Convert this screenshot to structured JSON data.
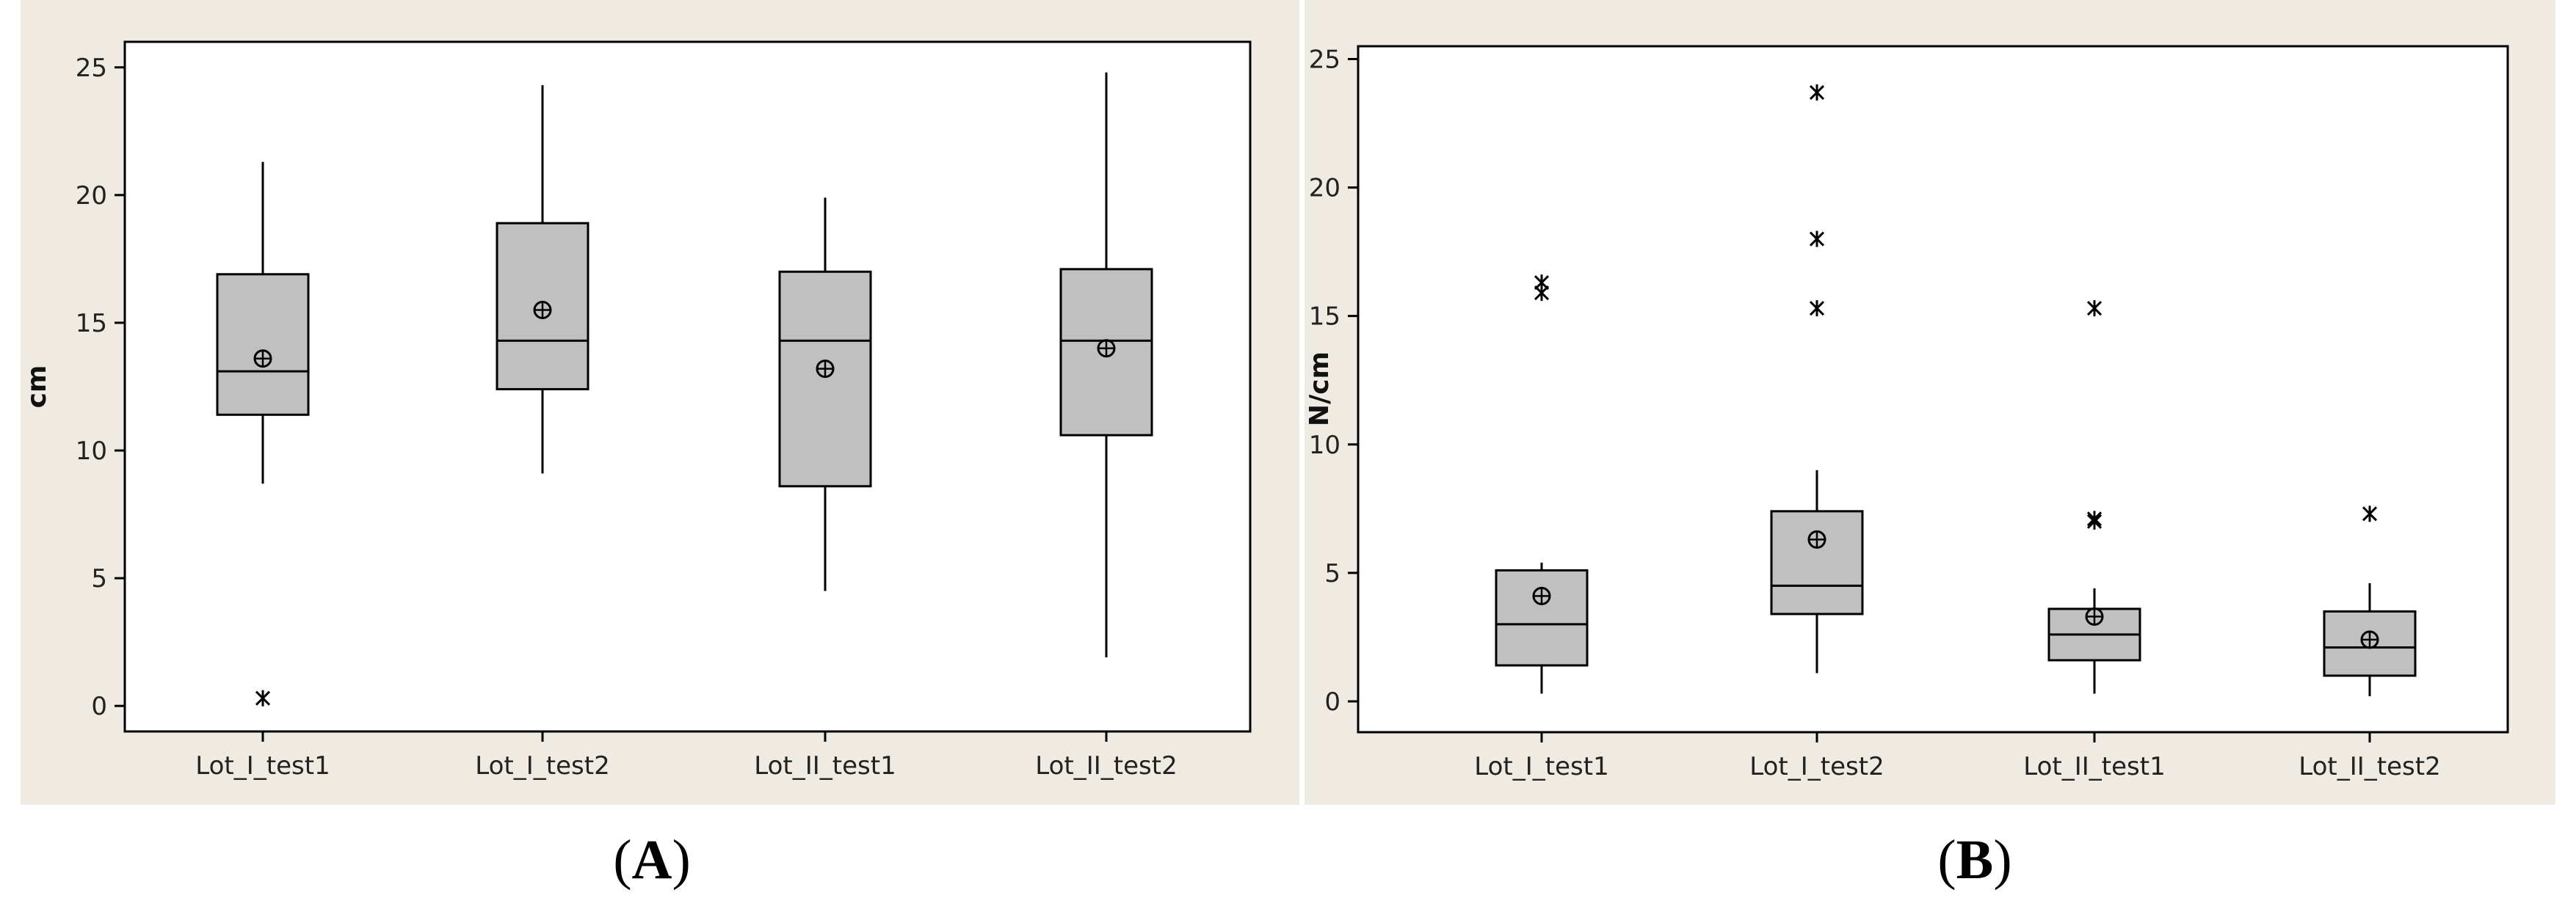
{
  "colors": {
    "panel_background": "#efebe2",
    "plot_background": "#ffffff",
    "box_fill": "#c0c0c0",
    "line": "#000000"
  },
  "chart_data": [
    {
      "type": "boxplot",
      "panel_label": {
        "open": "(",
        "letter": "A",
        "close": ")"
      },
      "ylabel": "cm",
      "ylim": [
        -1,
        26
      ],
      "yticks": [
        "0",
        "5",
        "10",
        "15",
        "20",
        "25"
      ],
      "categories": [
        "Lot_I_test1",
        "Lot_I_test2",
        "Lot_II_test1",
        "Lot_II_test2"
      ],
      "boxes": [
        {
          "whisker_low": 8.7,
          "q1": 11.4,
          "median": 13.1,
          "q3": 16.9,
          "whisker_high": 21.3,
          "mean": 13.6,
          "outliers": [
            0.3
          ]
        },
        {
          "whisker_low": 9.1,
          "q1": 12.4,
          "median": 14.3,
          "q3": 18.9,
          "whisker_high": 24.3,
          "mean": 15.5,
          "outliers": []
        },
        {
          "whisker_low": 4.5,
          "q1": 8.6,
          "median": 14.3,
          "q3": 17.0,
          "whisker_high": 19.9,
          "mean": 13.2,
          "outliers": []
        },
        {
          "whisker_low": 1.9,
          "q1": 10.6,
          "median": 14.3,
          "q3": 17.1,
          "whisker_high": 24.8,
          "mean": 14.0,
          "outliers": []
        }
      ],
      "grid": false,
      "legend": "none"
    },
    {
      "type": "boxplot",
      "panel_label": {
        "open": "(",
        "letter": "B",
        "close": ")"
      },
      "ylabel": "N/cm",
      "ylim": [
        -1.2,
        25.5
      ],
      "yticks": [
        "0",
        "5",
        "10",
        "15",
        "20",
        "25"
      ],
      "categories": [
        "Lot_I_test1",
        "Lot_I_test2",
        "Lot_II_test1",
        "Lot_II_test2"
      ],
      "boxes": [
        {
          "whisker_low": 0.3,
          "q1": 1.4,
          "median": 3.0,
          "q3": 5.1,
          "whisker_high": 5.4,
          "mean": 4.1,
          "outliers": [
            15.9,
            16.3
          ]
        },
        {
          "whisker_low": 1.1,
          "q1": 3.4,
          "median": 4.5,
          "q3": 7.4,
          "whisker_high": 9.0,
          "mean": 6.3,
          "outliers": [
            15.3,
            18.0,
            23.7
          ]
        },
        {
          "whisker_low": 0.3,
          "q1": 1.6,
          "median": 2.6,
          "q3": 3.6,
          "whisker_high": 4.4,
          "mean": 3.3,
          "outliers": [
            7.0,
            7.1,
            15.3
          ]
        },
        {
          "whisker_low": 0.2,
          "q1": 1.0,
          "median": 2.1,
          "q3": 3.5,
          "whisker_high": 4.6,
          "mean": 2.4,
          "outliers": [
            7.3
          ]
        }
      ],
      "grid": false,
      "legend": "none"
    }
  ]
}
